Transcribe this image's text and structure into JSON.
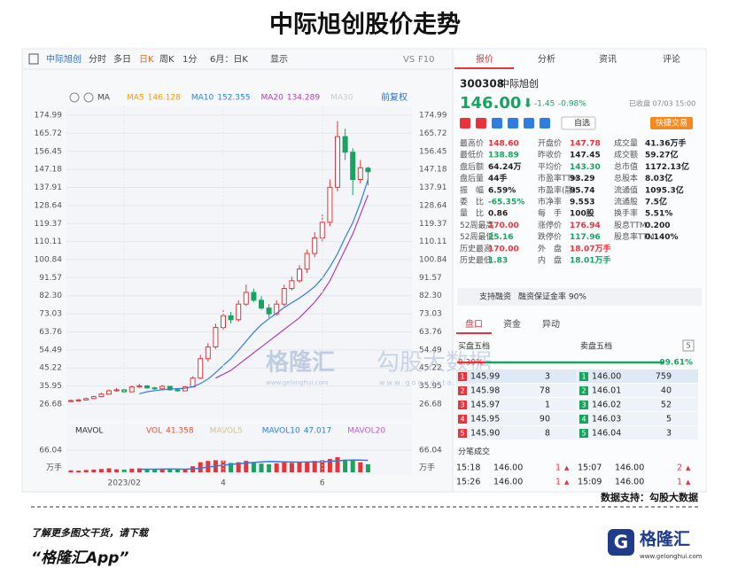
{
  "header": {
    "title": "中际旭创股价走势"
  },
  "toolbar": {
    "stock": "中际旭创",
    "items": [
      "分时",
      "多日",
      "日K",
      "周K",
      "1分",
      "6月：日K",
      "显示"
    ],
    "vs": "VS",
    "f10": "F10"
  },
  "chart_toolbar": {
    "ma": "MA",
    "adjust": "前复权"
  },
  "chart_data": [
    {
      "type": "candlestick",
      "up_color": "#e8333a",
      "down_color": "#1aa260",
      "ylim": [
        26.68,
        174.99
      ],
      "yticks": [
        174.99,
        165.72,
        156.45,
        147.18,
        137.91,
        128.64,
        119.37,
        110.11,
        100.84,
        91.57,
        {
          "value": 82.3,
          "label": "82.30"
        },
        73.03,
        63.76,
        54.49,
        45.22,
        35.95,
        26.68
      ],
      "series": [
        {
          "name": "MA5",
          "label": 146.128,
          "color": "#f39c12"
        },
        {
          "name": "MA10",
          "label": 152.355,
          "color": "#2f7de1",
          "values": [
            null,
            null,
            null,
            null,
            null,
            null,
            null,
            null,
            null,
            32.0,
            33.0,
            33.6,
            34.0,
            34.4,
            34.6,
            34.8,
            35.6,
            37.2,
            39.5,
            42.8,
            46.5,
            50.0,
            54.3,
            59.0,
            63.5,
            67.5,
            70.5,
            73.3,
            76.3,
            78.7,
            81.1,
            83.9,
            87.0,
            91.3,
            97.1,
            103.9,
            112.2,
            119.8,
            130.0,
            142.0
          ]
        },
        {
          "name": "MA20",
          "label": 134.289,
          "color": "#b03fb8",
          "values": [
            null,
            null,
            null,
            null,
            null,
            null,
            null,
            null,
            null,
            null,
            null,
            null,
            null,
            null,
            null,
            null,
            null,
            null,
            null,
            40,
            42,
            44,
            47,
            50,
            53,
            56,
            59,
            62,
            65,
            68,
            71,
            75,
            79,
            84,
            90,
            98,
            106,
            114,
            124,
            134
          ]
        },
        {
          "name": "MA30",
          "color": "#c9c9c9"
        }
      ],
      "candles": [
        [
          28.0,
          29.0,
          27.6,
          28.5
        ],
        [
          28.5,
          29.3,
          28.0,
          28.8
        ],
        [
          28.8,
          30.0,
          28.5,
          29.5
        ],
        [
          29.5,
          31.0,
          29.2,
          30.5
        ],
        [
          30.5,
          32.5,
          30.2,
          31.8
        ],
        [
          31.8,
          34.2,
          31.5,
          33.5
        ],
        [
          33.5,
          35.0,
          33.0,
          34.0
        ],
        [
          34.0,
          34.5,
          32.6,
          33.0
        ],
        [
          33.0,
          36.2,
          32.8,
          35.5
        ],
        [
          35.5,
          37.0,
          35.0,
          36.0
        ],
        [
          36.0,
          36.4,
          34.6,
          35.0
        ],
        [
          35.0,
          35.6,
          34.0,
          34.5
        ],
        [
          34.5,
          36.5,
          34.2,
          35.8
        ],
        [
          35.8,
          36.0,
          33.6,
          34.0
        ],
        [
          34.0,
          34.6,
          33.0,
          33.5
        ],
        [
          33.5,
          36.0,
          33.2,
          35.5
        ],
        [
          35.5,
          41.0,
          35.2,
          40.0
        ],
        [
          40.0,
          52.0,
          39.5,
          50.0
        ],
        [
          50.0,
          58.0,
          48.5,
          56.0
        ],
        [
          56.0,
          68.0,
          55.0,
          66.0
        ],
        [
          66.0,
          75.0,
          64.0,
          72.0
        ],
        [
          72.0,
          74.0,
          68.0,
          70.0
        ],
        [
          70.0,
          80.0,
          69.0,
          78.0
        ],
        [
          78.0,
          88.0,
          77.0,
          84.0
        ],
        [
          84.0,
          86.0,
          79.0,
          80.0
        ],
        [
          80.0,
          82.0,
          75.0,
          76.0
        ],
        [
          76.0,
          78.0,
          71.0,
          73.0
        ],
        [
          73.0,
          80.0,
          72.0,
          78.0
        ],
        [
          78.0,
          88.0,
          77.0,
          86.0
        ],
        [
          86.0,
          92.0,
          85.0,
          90.0
        ],
        [
          90.0,
          98.0,
          89.0,
          96.0
        ],
        [
          96.0,
          106.0,
          94.0,
          104.0
        ],
        [
          104.0,
          115.0,
          102.0,
          112.0
        ],
        [
          112.0,
          124.0,
          110.0,
          120.0
        ],
        [
          120.0,
          142.0,
          118.0,
          138.0
        ],
        [
          138.0,
          172.0,
          136.0,
          164.0
        ],
        [
          164.0,
          168.0,
          152.0,
          156.0
        ],
        [
          156.0,
          158.0,
          134.0,
          142.0
        ],
        [
          142.0,
          152.0,
          140.0,
          148.0
        ],
        [
          147.78,
          148.6,
          138.89,
          146.0
        ]
      ]
    },
    {
      "type": "bar",
      "legend_title": "MAVOL",
      "unit": "万手",
      "ylim": [
        0,
        66.04
      ],
      "yticks": [
        66.04
      ],
      "categories": [
        null,
        null,
        null,
        null,
        null,
        null,
        null,
        "2023/02",
        null,
        null,
        null,
        null,
        null,
        null,
        null,
        null,
        null,
        null,
        null,
        null,
        "4",
        null,
        null,
        null,
        null,
        null,
        null,
        null,
        null,
        null,
        null,
        null,
        null,
        "6",
        null,
        null,
        null,
        null,
        null,
        null
      ],
      "series": [
        {
          "name": "VOL",
          "label": 41.358,
          "color": "#e8533a",
          "values": [
            6,
            5,
            7,
            8,
            10,
            12,
            9,
            8,
            11,
            12,
            9,
            8,
            10,
            9,
            8,
            10,
            18,
            30,
            34,
            36,
            35,
            28,
            30,
            34,
            28,
            26,
            24,
            27,
            30,
            28,
            30,
            32,
            34,
            36,
            40,
            45,
            38,
            36,
            30,
            24
          ]
        },
        {
          "name": "MAVOL5",
          "color": "#d4c39a"
        },
        {
          "name": "MAVOL10",
          "label": 47.017,
          "color": "#2f7de1",
          "values": [
            null,
            null,
            null,
            null,
            null,
            null,
            null,
            null,
            null,
            9,
            9.3,
            9.4,
            9.7,
            9.8,
            9.6,
            9.4,
            10.3,
            12.5,
            15.5,
            18.6,
            21.3,
            23.5,
            25.7,
            27.7,
            29.4,
            31,
            32.2,
            32.1,
            31.1,
            30.6,
            30.4,
            30.6,
            31,
            31.5,
            32.8,
            34.4,
            35.6,
            36.5,
            36.3,
            35.7
          ]
        },
        {
          "name": "MAVOL20",
          "color": "#b75fd0"
        }
      ]
    }
  ],
  "watermark": {
    "brand": "格隆汇",
    "brand_url": "www.gelonghui.com",
    "data": "勾股大数据",
    "data_url": "www.gogudata.com"
  },
  "quote": {
    "tabs": [
      "报价",
      "分析",
      "资讯",
      "评论"
    ],
    "code": "300308",
    "name": "中际旭创",
    "price": "146.00",
    "change": "-1.45",
    "pct": "-0.98%",
    "status": "已收盘 07/03 15:00",
    "watch": "自选",
    "trade": "快捷交易",
    "stats": [
      [
        [
          "最高价",
          "148.60",
          "#e8333a"
        ],
        [
          "最低价",
          "138.89",
          "#1aa260"
        ],
        [
          "盘后额",
          "64.24万"
        ],
        [
          "盘后量",
          "44手"
        ],
        [
          "振　幅",
          "6.59%"
        ],
        [
          "委　比",
          "-65.35%",
          "#1aa260"
        ],
        [
          "量　比",
          "0.86"
        ],
        [
          "52周最高",
          "170.00",
          "#e8333a"
        ],
        [
          "52周最低",
          "25.16",
          "#1aa260"
        ],
        [
          "历史最高",
          "170.00",
          "#e8333a"
        ],
        [
          "历史最低",
          "1.83",
          "#1aa260"
        ]
      ],
      [
        [
          "开盘价",
          "147.78",
          "#e8333a"
        ],
        [
          "昨收价",
          "147.45"
        ],
        [
          "平均价",
          "143.30",
          "#1aa260"
        ],
        [
          "市盈率TTM",
          "93.29"
        ],
        [
          "市盈率(静)",
          "95.74"
        ],
        [
          "市净率",
          "9.553"
        ],
        [
          "每　手",
          "100股"
        ],
        [
          "涨停价",
          "176.94",
          "#e8333a"
        ],
        [
          "跌停价",
          "117.96",
          "#1aa260"
        ],
        [
          "外　盘",
          "18.07万手",
          "#e8333a"
        ],
        [
          "内　盘",
          "18.01万手",
          "#1aa260"
        ]
      ],
      [
        [
          "成交量",
          "41.36万手"
        ],
        [
          "成交额",
          "59.27亿"
        ],
        [
          "总市值",
          "1172.13亿"
        ],
        [
          "总股本",
          "8.03亿"
        ],
        [
          "流通值",
          "1095.3亿"
        ],
        [
          "流通股",
          "7.5亿"
        ],
        [
          "换手率",
          "5.51%"
        ],
        [
          "股息TTM",
          "0.200"
        ],
        [
          "股息率TTM",
          "0.140%"
        ]
      ]
    ],
    "margin": "支持融资",
    "margin_rate": "融资保证金率 90%",
    "tabs2": [
      "盘口",
      "资金",
      "异动"
    ],
    "bid_title": "买盘五档",
    "ask_title": "卖盘五档",
    "depth": "5",
    "bid_ratio": "0.39%",
    "ask_ratio": "99.61%",
    "bids": [
      [
        "1",
        "145.99",
        "3"
      ],
      [
        "2",
        "145.98",
        "78"
      ],
      [
        "3",
        "145.97",
        "1"
      ],
      [
        "4",
        "145.95",
        "90"
      ],
      [
        "5",
        "145.90",
        "8"
      ]
    ],
    "asks": [
      [
        "1",
        "146.00",
        "759"
      ],
      [
        "2",
        "146.01",
        "40"
      ],
      [
        "3",
        "146.02",
        "52"
      ],
      [
        "4",
        "146.03",
        "5"
      ],
      [
        "5",
        "146.04",
        "3"
      ]
    ],
    "ticks_title": "分笔成交",
    "ticks": [
      [
        "15:18",
        "146.00",
        "1"
      ],
      [
        "15:07",
        "146.00",
        "2"
      ],
      [
        "15:26",
        "146.00",
        "1"
      ],
      [
        "15:09",
        "146.00",
        "1"
      ]
    ]
  },
  "footer": {
    "source": "数据支持：勾股大数据",
    "cta": "了解更多图文干货，请下载",
    "app": "“格隆汇App”",
    "logo": "格隆汇",
    "url": "www.gelonghui.com"
  }
}
